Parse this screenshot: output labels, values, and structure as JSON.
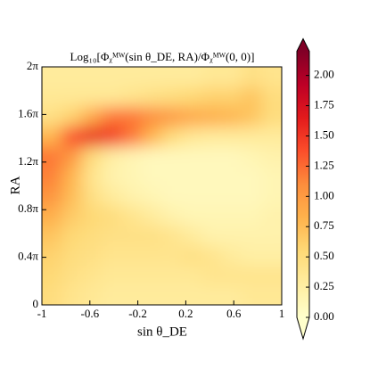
{
  "chart_data": {
    "type": "heatmap",
    "title": "Log₁₀[Φᵪᴹᵂ(sin θ_DE, RA)/Φᵪᴹᵂ(0, 0)]",
    "x_label": "sin θ_DE",
    "y_label": "RA",
    "x": [
      -0.917,
      -0.75,
      -0.583,
      -0.417,
      -0.25,
      -0.083,
      0.083,
      0.25,
      0.417,
      0.583,
      0.75,
      0.917
    ],
    "y": [
      0.2618,
      0.7854,
      1.309,
      1.8326,
      2.3562,
      2.8798,
      3.4034,
      3.927,
      4.4506,
      4.9742,
      5.4978,
      6.0214
    ],
    "z": [
      [
        0.5,
        0.4,
        0.35,
        0.3,
        0.3,
        0.3,
        0.3,
        0.3,
        0.3,
        0.3,
        0.35,
        0.35
      ],
      [
        0.55,
        0.45,
        0.4,
        0.35,
        0.35,
        0.35,
        0.35,
        0.35,
        0.4,
        0.4,
        0.4,
        0.4
      ],
      [
        0.6,
        0.5,
        0.45,
        0.4,
        0.4,
        0.4,
        0.4,
        0.45,
        0.4,
        0.3,
        0.25,
        0.25
      ],
      [
        0.7,
        0.55,
        0.5,
        0.45,
        0.45,
        0.45,
        0.4,
        0.3,
        0.2,
        0.2,
        0.2,
        0.2
      ],
      [
        0.85,
        0.65,
        0.55,
        0.5,
        0.4,
        0.3,
        0.2,
        0.15,
        0.15,
        0.15,
        0.15,
        0.2
      ],
      [
        1.05,
        0.75,
        0.45,
        0.3,
        0.2,
        0.15,
        0.1,
        0.1,
        0.1,
        0.1,
        0.1,
        0.15
      ],
      [
        1.15,
        0.8,
        0.4,
        0.2,
        0.15,
        0.1,
        0.1,
        0.1,
        0.1,
        0.1,
        0.1,
        0.15
      ],
      [
        1.2,
        1.0,
        0.5,
        0.25,
        0.15,
        0.1,
        0.1,
        0.1,
        0.1,
        0.1,
        0.15,
        0.2
      ],
      [
        0.8,
        1.4,
        1.6,
        1.5,
        1.2,
        0.8,
        0.5,
        0.35,
        0.3,
        0.3,
        0.3,
        0.3
      ],
      [
        0.45,
        0.6,
        0.9,
        1.2,
        1.2,
        1.1,
        1.0,
        0.9,
        0.85,
        0.8,
        0.7,
        0.5
      ],
      [
        0.35,
        0.35,
        0.35,
        0.35,
        0.4,
        0.45,
        0.5,
        0.55,
        0.6,
        0.6,
        0.7,
        0.5
      ],
      [
        0.3,
        0.3,
        0.3,
        0.3,
        0.3,
        0.3,
        0.3,
        0.3,
        0.35,
        0.35,
        0.45,
        0.4
      ]
    ],
    "xlim": [
      -1,
      1
    ],
    "xticks": [
      -1,
      -0.6,
      -0.2,
      0.2,
      0.6,
      1
    ],
    "ylim": [
      0,
      6.2832
    ],
    "yticks": [
      0,
      {
        "value": 1.2566,
        "label": "0.4π"
      },
      {
        "value": 2.5133,
        "label": "0.8π"
      },
      {
        "value": 3.7699,
        "label": "1.2π"
      },
      {
        "value": 5.0265,
        "label": "1.6π"
      },
      {
        "value": 6.2832,
        "label": "2π"
      }
    ],
    "zlim": [
      0,
      2.2
    ],
    "zticks": [
      {
        "value": 0,
        "label": "0.00"
      },
      {
        "value": 0.25,
        "label": "0.25"
      },
      {
        "value": 0.5,
        "label": "0.50"
      },
      {
        "value": 0.75,
        "label": "0.75"
      },
      {
        "value": 1,
        "label": "1.00"
      },
      {
        "value": 1.25,
        "label": "1.25"
      },
      {
        "value": 1.5,
        "label": "1.50"
      },
      {
        "value": 1.75,
        "label": "1.75"
      },
      {
        "value": 2,
        "label": "2.00"
      }
    ],
    "colormap": [
      "#ffffcc",
      "#ffeda0",
      "#fed976",
      "#feb24c",
      "#fd8d3c",
      "#fc4e2a",
      "#e31a1c",
      "#bd0026",
      "#800026"
    ]
  }
}
